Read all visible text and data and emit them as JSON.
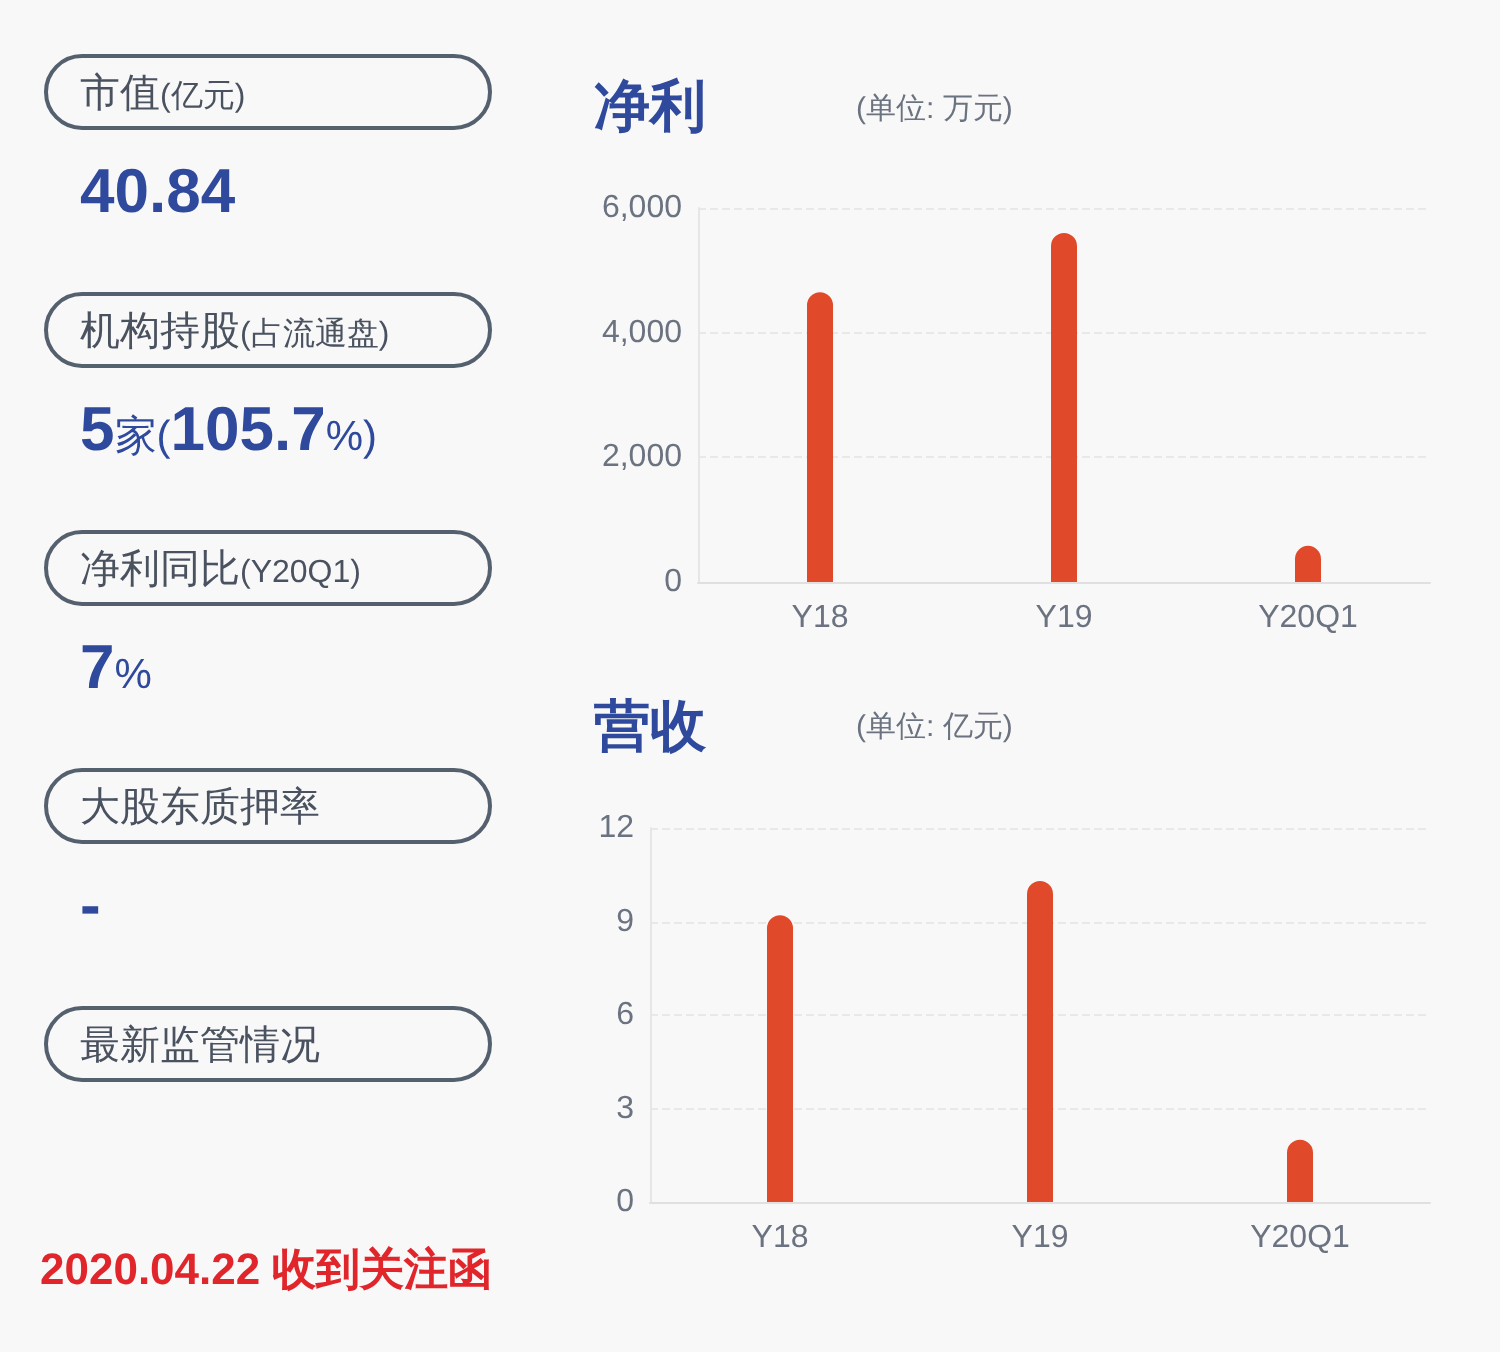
{
  "chart_data": [
    {
      "type": "other",
      "annotations": [
        "市值(亿元)",
        "40.84",
        "机构持股(占流通盘)",
        "5家(105.7%)",
        "净利同比(Y20Q1)",
        "7%",
        "大股东质押率",
        "-",
        "最新监管情况",
        "2020.04.22 收到关注函"
      ]
    },
    {
      "type": "bar",
      "title": "净利",
      "subtitle": "(单位: 万元)",
      "categories": [
        "Y18",
        "Y19",
        "Y20Q1"
      ],
      "values": [
        4650,
        5600,
        580
      ],
      "color": "#e04a2a",
      "ylim": [
        0,
        6000
      ],
      "yticks": [
        0,
        {
          "value": 2000,
          "label": "2,000"
        },
        {
          "value": 4000,
          "label": "4,000"
        },
        {
          "value": 6000,
          "label": "6,000"
        }
      ],
      "grid": "y"
    },
    {
      "type": "bar",
      "title": "营收",
      "subtitle": "(单位: 亿元)",
      "categories": [
        "Y18",
        "Y19",
        "Y20Q1"
      ],
      "values": [
        9.2,
        10.3,
        2.0
      ],
      "color": "#e04a2a",
      "ylim": [
        0,
        12
      ],
      "yticks": [
        0,
        3,
        6,
        9,
        12
      ],
      "grid": "y"
    }
  ]
}
